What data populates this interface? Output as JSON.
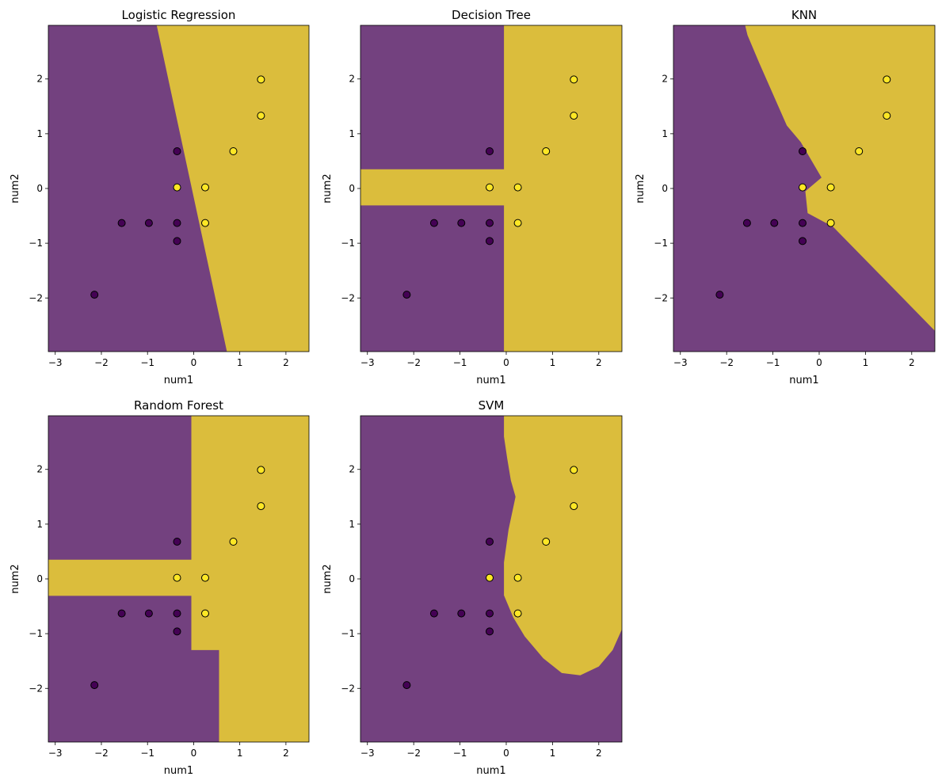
{
  "figure": {
    "background": "#ffffff"
  },
  "colors": {
    "class0": "#440154",
    "class1": "#fde725",
    "alpha": 0.75,
    "edge": "#000000"
  },
  "chart_data": [
    {
      "type": "scatter",
      "title": "Logistic Regression",
      "xlabel": "num1",
      "ylabel": "num2",
      "xlim": [
        -3.15,
        2.5
      ],
      "ylim": [
        -2.98,
        2.98
      ],
      "xticks": [
        -3,
        -2,
        -1,
        0,
        1,
        2
      ],
      "yticks": [
        -2,
        -1,
        0,
        1,
        2
      ],
      "region": {
        "kind": "polygon",
        "class1": [
          [
            -0.8,
            2.98
          ],
          [
            0.72,
            -2.98
          ],
          [
            2.5,
            -2.98
          ],
          [
            2.5,
            2.98
          ]
        ]
      },
      "points": [
        {
          "x": -2.15,
          "y": -1.94,
          "c": 0
        },
        {
          "x": -1.56,
          "y": -0.63,
          "c": 0
        },
        {
          "x": -0.97,
          "y": -0.63,
          "c": 0
        },
        {
          "x": -0.36,
          "y": -0.63,
          "c": 0
        },
        {
          "x": -0.36,
          "y": -0.96,
          "c": 0
        },
        {
          "x": -0.36,
          "y": 0.68,
          "c": 0
        },
        {
          "x": -0.36,
          "y": 0.02,
          "c": 1
        },
        {
          "x": 0.25,
          "y": 0.02,
          "c": 1
        },
        {
          "x": 0.25,
          "y": -0.63,
          "c": 1
        },
        {
          "x": 0.86,
          "y": 0.68,
          "c": 1
        },
        {
          "x": 1.46,
          "y": 1.33,
          "c": 1
        },
        {
          "x": 1.46,
          "y": 1.99,
          "c": 1
        }
      ]
    },
    {
      "type": "scatter",
      "title": "Decision Tree",
      "xlabel": "num1",
      "ylabel": "num2",
      "xlim": [
        -3.15,
        2.5
      ],
      "ylim": [
        -2.98,
        2.98
      ],
      "xticks": [
        -3,
        -2,
        -1,
        0,
        1,
        2
      ],
      "yticks": [
        -2,
        -1,
        0,
        1,
        2
      ],
      "region": {
        "kind": "polygon",
        "class1": [
          [
            -0.05,
            2.98
          ],
          [
            2.5,
            2.98
          ],
          [
            2.5,
            -2.98
          ],
          [
            -0.05,
            -2.98
          ],
          [
            -0.05,
            -0.31
          ],
          [
            -3.15,
            -0.31
          ],
          [
            -3.15,
            0.35
          ],
          [
            -0.05,
            0.35
          ]
        ]
      },
      "points": [
        {
          "x": -2.15,
          "y": -1.94,
          "c": 0
        },
        {
          "x": -1.56,
          "y": -0.63,
          "c": 0
        },
        {
          "x": -0.97,
          "y": -0.63,
          "c": 0
        },
        {
          "x": -0.36,
          "y": -0.63,
          "c": 0
        },
        {
          "x": -0.36,
          "y": -0.96,
          "c": 0
        },
        {
          "x": -0.36,
          "y": 0.68,
          "c": 0
        },
        {
          "x": -0.36,
          "y": 0.02,
          "c": 1
        },
        {
          "x": 0.25,
          "y": 0.02,
          "c": 1
        },
        {
          "x": 0.25,
          "y": -0.63,
          "c": 1
        },
        {
          "x": 0.86,
          "y": 0.68,
          "c": 1
        },
        {
          "x": 1.46,
          "y": 1.33,
          "c": 1
        },
        {
          "x": 1.46,
          "y": 1.99,
          "c": 1
        }
      ]
    },
    {
      "type": "scatter",
      "title": "KNN",
      "xlabel": "num1",
      "ylabel": "num2",
      "xlim": [
        -3.15,
        2.5
      ],
      "ylim": [
        -2.98,
        2.98
      ],
      "xticks": [
        -3,
        -2,
        -1,
        0,
        1,
        2
      ],
      "yticks": [
        -2,
        -1,
        0,
        1,
        2
      ],
      "region": {
        "kind": "polygon",
        "class1": [
          [
            -1.6,
            2.98
          ],
          [
            2.5,
            2.98
          ],
          [
            2.5,
            -2.6
          ],
          [
            0.3,
            -0.7
          ],
          [
            -0.25,
            -0.45
          ],
          [
            -0.3,
            -0.05
          ],
          [
            0.05,
            0.2
          ],
          [
            -0.4,
            0.85
          ],
          [
            -0.7,
            1.15
          ],
          [
            -1.3,
            2.3
          ],
          [
            -1.55,
            2.8
          ]
        ]
      },
      "points": [
        {
          "x": -2.15,
          "y": -1.94,
          "c": 0
        },
        {
          "x": -1.56,
          "y": -0.63,
          "c": 0
        },
        {
          "x": -0.97,
          "y": -0.63,
          "c": 0
        },
        {
          "x": -0.36,
          "y": -0.63,
          "c": 0
        },
        {
          "x": -0.36,
          "y": -0.96,
          "c": 0
        },
        {
          "x": -0.36,
          "y": 0.68,
          "c": 0
        },
        {
          "x": -0.36,
          "y": 0.02,
          "c": 1
        },
        {
          "x": 0.25,
          "y": 0.02,
          "c": 1
        },
        {
          "x": 0.25,
          "y": -0.63,
          "c": 1
        },
        {
          "x": 0.86,
          "y": 0.68,
          "c": 1
        },
        {
          "x": 1.46,
          "y": 1.33,
          "c": 1
        },
        {
          "x": 1.46,
          "y": 1.99,
          "c": 1
        }
      ]
    },
    {
      "type": "scatter",
      "title": "Random Forest",
      "xlabel": "num1",
      "ylabel": "num2",
      "xlim": [
        -3.15,
        2.5
      ],
      "ylim": [
        -2.98,
        2.98
      ],
      "xticks": [
        -3,
        -2,
        -1,
        0,
        1,
        2
      ],
      "yticks": [
        -2,
        -1,
        0,
        1,
        2
      ],
      "region": {
        "kind": "polygon",
        "class1": [
          [
            -0.05,
            2.98
          ],
          [
            2.5,
            2.98
          ],
          [
            2.5,
            -2.98
          ],
          [
            0.55,
            -2.98
          ],
          [
            0.55,
            -1.3
          ],
          [
            -0.05,
            -1.3
          ],
          [
            -0.05,
            -0.31
          ],
          [
            -3.15,
            -0.31
          ],
          [
            -3.15,
            0.35
          ],
          [
            -0.05,
            0.35
          ]
        ]
      },
      "points": [
        {
          "x": -2.15,
          "y": -1.94,
          "c": 0
        },
        {
          "x": -1.56,
          "y": -0.63,
          "c": 0
        },
        {
          "x": -0.97,
          "y": -0.63,
          "c": 0
        },
        {
          "x": -0.36,
          "y": -0.63,
          "c": 0
        },
        {
          "x": -0.36,
          "y": -0.96,
          "c": 0
        },
        {
          "x": -0.36,
          "y": 0.68,
          "c": 0
        },
        {
          "x": -0.36,
          "y": 0.02,
          "c": 1
        },
        {
          "x": 0.25,
          "y": 0.02,
          "c": 1
        },
        {
          "x": 0.25,
          "y": -0.63,
          "c": 1
        },
        {
          "x": 0.86,
          "y": 0.68,
          "c": 1
        },
        {
          "x": 1.46,
          "y": 1.33,
          "c": 1
        },
        {
          "x": 1.46,
          "y": 1.99,
          "c": 1
        }
      ]
    },
    {
      "type": "scatter",
      "title": "SVM",
      "xlabel": "num1",
      "ylabel": "num2",
      "xlim": [
        -3.15,
        2.5
      ],
      "ylim": [
        -2.98,
        2.98
      ],
      "xticks": [
        -3,
        -2,
        -1,
        0,
        1,
        2
      ],
      "yticks": [
        -2,
        -1,
        0,
        1,
        2
      ],
      "region": {
        "kind": "polygon",
        "class1": [
          [
            -0.05,
            2.98
          ],
          [
            2.5,
            2.98
          ],
          [
            2.5,
            -0.92
          ],
          [
            2.3,
            -1.3
          ],
          [
            2.0,
            -1.6
          ],
          [
            1.6,
            -1.76
          ],
          [
            1.2,
            -1.72
          ],
          [
            0.8,
            -1.45
          ],
          [
            0.4,
            -1.05
          ],
          [
            0.15,
            -0.7
          ],
          [
            -0.05,
            -0.3
          ],
          [
            -0.05,
            0.3
          ],
          [
            0.05,
            0.9
          ],
          [
            0.2,
            1.5
          ],
          [
            0.1,
            1.8
          ],
          [
            0.02,
            2.2
          ],
          [
            -0.05,
            2.6
          ]
        ]
      },
      "points": [
        {
          "x": -2.15,
          "y": -1.94,
          "c": 0
        },
        {
          "x": -1.56,
          "y": -0.63,
          "c": 0
        },
        {
          "x": -0.97,
          "y": -0.63,
          "c": 0
        },
        {
          "x": -0.36,
          "y": -0.63,
          "c": 0
        },
        {
          "x": -0.36,
          "y": -0.96,
          "c": 0
        },
        {
          "x": -0.36,
          "y": 0.68,
          "c": 0
        },
        {
          "x": -0.36,
          "y": 0.02,
          "c": 1
        },
        {
          "x": 0.25,
          "y": 0.02,
          "c": 1
        },
        {
          "x": 0.25,
          "y": -0.63,
          "c": 1
        },
        {
          "x": 0.86,
          "y": 0.68,
          "c": 1
        },
        {
          "x": 1.46,
          "y": 1.33,
          "c": 1
        },
        {
          "x": 1.46,
          "y": 1.99,
          "c": 1
        }
      ]
    }
  ]
}
